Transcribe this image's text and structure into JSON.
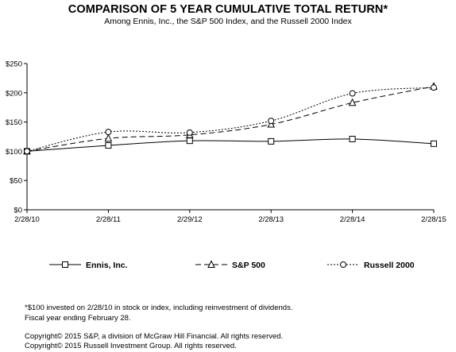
{
  "chart_data": {
    "type": "line",
    "title": "COMPARISON OF 5 YEAR CUMULATIVE TOTAL RETURN*",
    "subtitle": "Among Ennis, Inc., the S&P 500 Index, and the Russell 2000 Index",
    "categories": [
      "2/28/10",
      "2/28/11",
      "2/29/12",
      "2/28/13",
      "2/28/14",
      "2/28/15"
    ],
    "y_ticks": [
      "$0",
      "$50",
      "$100",
      "$150",
      "$200",
      "$250"
    ],
    "ylim": [
      0,
      250
    ],
    "grid": false,
    "legend_position": "bottom",
    "series": [
      {
        "name": "Ennis, Inc.",
        "marker": "square",
        "dash": "solid",
        "values": [
          100,
          110,
          118,
          117,
          121,
          113
        ]
      },
      {
        "name": "S&P 500",
        "marker": "triangle",
        "dash": "long-dash",
        "values": [
          100,
          122,
          128,
          146,
          183,
          211
        ]
      },
      {
        "name": "Russell 2000",
        "marker": "circle",
        "dash": "dotted",
        "values": [
          100,
          133,
          132,
          152,
          199,
          209
        ]
      }
    ]
  },
  "footnotes": [
    "*$100 invested on 2/28/10 in stock or index, including reinvestment of dividends.",
    "Fiscal year ending February 28."
  ],
  "copyrights": [
    "Copyright© 2015 S&P, a division of McGraw Hill Financial. All rights reserved.",
    "Copyright© 2015 Russell Investment Group. All rights reserved."
  ]
}
